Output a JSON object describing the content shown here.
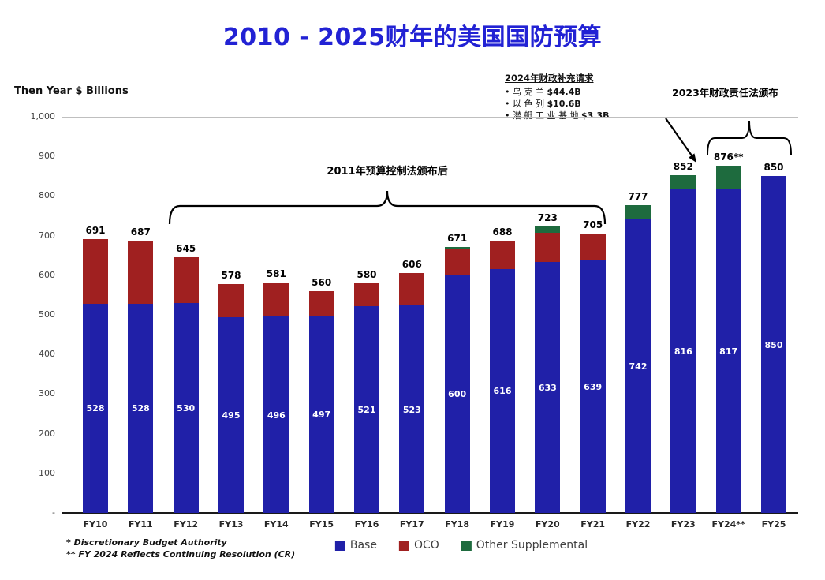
{
  "title": "2010 - 2025财年的美国国防预算",
  "y_axis_label": "Then Year $ Billions",
  "colors": {
    "title": "#2222D4",
    "base": "#2020A8",
    "oco": "#A02020",
    "other": "#1E6B3E"
  },
  "annotations": {
    "supplemental": {
      "heading": "2024年财政补充请求",
      "items": [
        {
          "label": "乌 克 兰",
          "value": "$44.4B"
        },
        {
          "label": "以 色 列",
          "value": "$10.6B"
        },
        {
          "label": "潜 艇 工 业 基 地",
          "value": "$3.3B"
        }
      ]
    },
    "fra_2023": "2023年财政责任法颁布",
    "bca_2011": "2011年预算控制法颁布后"
  },
  "footnotes": [
    "* Discretionary Budget Authority",
    "** FY 2024 Reflects Continuing Resolution (CR)"
  ],
  "legend": [
    {
      "label": "Base",
      "color": "#2020A8"
    },
    {
      "label": "OCO",
      "color": "#A02020"
    },
    {
      "label": "Other Supplemental",
      "color": "#1E6B3E"
    }
  ],
  "chart_data": {
    "type": "bar",
    "stacked": true,
    "title": "2010 - 2025财年的美国国防预算",
    "ylabel": "Then Year $ Billions",
    "ylim": [
      0,
      1000
    ],
    "grid": "top-line-only",
    "legend_position": "bottom",
    "categories": [
      "FY10",
      "FY11",
      "FY12",
      "FY13",
      "FY14",
      "FY15",
      "FY16",
      "FY17",
      "FY18",
      "FY19",
      "FY20",
      "FY21",
      "FY22",
      "FY23",
      "FY24**",
      "FY25"
    ],
    "series": [
      {
        "name": "Base",
        "color": "#2020A8",
        "values": [
          528,
          528,
          530,
          495,
          496,
          497,
          521,
          523,
          600,
          616,
          633,
          639,
          742,
          816,
          817,
          850
        ]
      },
      {
        "name": "OCO",
        "color": "#A02020",
        "values": [
          163,
          159,
          115,
          83,
          85,
          63,
          59,
          83,
          65,
          72,
          75,
          66,
          0,
          0,
          0,
          0
        ]
      },
      {
        "name": "Other Supplemental",
        "color": "#1E6B3E",
        "values": [
          0,
          0,
          0,
          0,
          0,
          0,
          0,
          0,
          6,
          0,
          15,
          0,
          35,
          36,
          59,
          0
        ]
      }
    ],
    "totals": [
      "691",
      "687",
      "645",
      "578",
      "581",
      "560",
      "580",
      "606",
      "671",
      "688",
      "723",
      "705",
      "777",
      "852",
      "876**",
      "850"
    ],
    "base_labels": [
      "528",
      "528",
      "530",
      "495",
      "496",
      "497",
      "521",
      "523",
      "600",
      "616",
      "633",
      "639",
      "742",
      "816",
      "817",
      "850"
    ],
    "yticks": [
      [
        1000,
        "1,000"
      ],
      [
        900,
        "900"
      ],
      [
        800,
        "800"
      ],
      [
        700,
        "700"
      ],
      [
        600,
        "600"
      ],
      [
        500,
        "500"
      ],
      [
        400,
        "400"
      ],
      [
        300,
        "300"
      ],
      [
        200,
        "200"
      ],
      [
        100,
        "100"
      ],
      [
        0,
        "-"
      ]
    ]
  }
}
